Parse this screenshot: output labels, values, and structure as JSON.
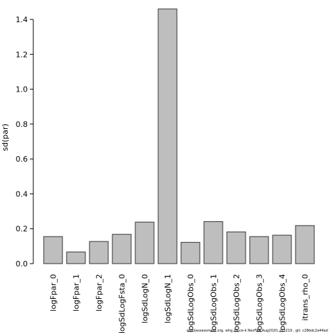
{
  "chart_data": {
    "type": "bar",
    "categories": [
      "logFpar_0",
      "logFpar_1",
      "logFpar_2",
      "logSdLogFsta_0",
      "logSdLogN_0",
      "logSdLogN_1",
      "logSdLogObs_0",
      "logSdLogObs_1",
      "logSdLogObs_2",
      "logSdLogObs_3",
      "logSdLogObs_4",
      "itrans_rho_0"
    ],
    "values": [
      0.155,
      0.067,
      0.127,
      0.168,
      0.238,
      1.46,
      0.122,
      0.241,
      0.182,
      0.155,
      0.163,
      0.218
    ],
    "ylabel": "sd(par)",
    "ylim": [
      0,
      1.4
    ],
    "yticks": [
      "0.0",
      "0.2",
      "0.4",
      "0.6",
      "0.8",
      "1.0",
      "1.2",
      "1.4"
    ],
    "grid": false,
    "colors": {
      "bar_fill": "#bebebe",
      "bar_stroke": "#333333",
      "axis": "#000000"
    }
  },
  "footer_text": "stockassessment.org, whg 7b-ce-k  RevFRA Aug2020, r13219 ,  git: c28bdc2a44ad"
}
